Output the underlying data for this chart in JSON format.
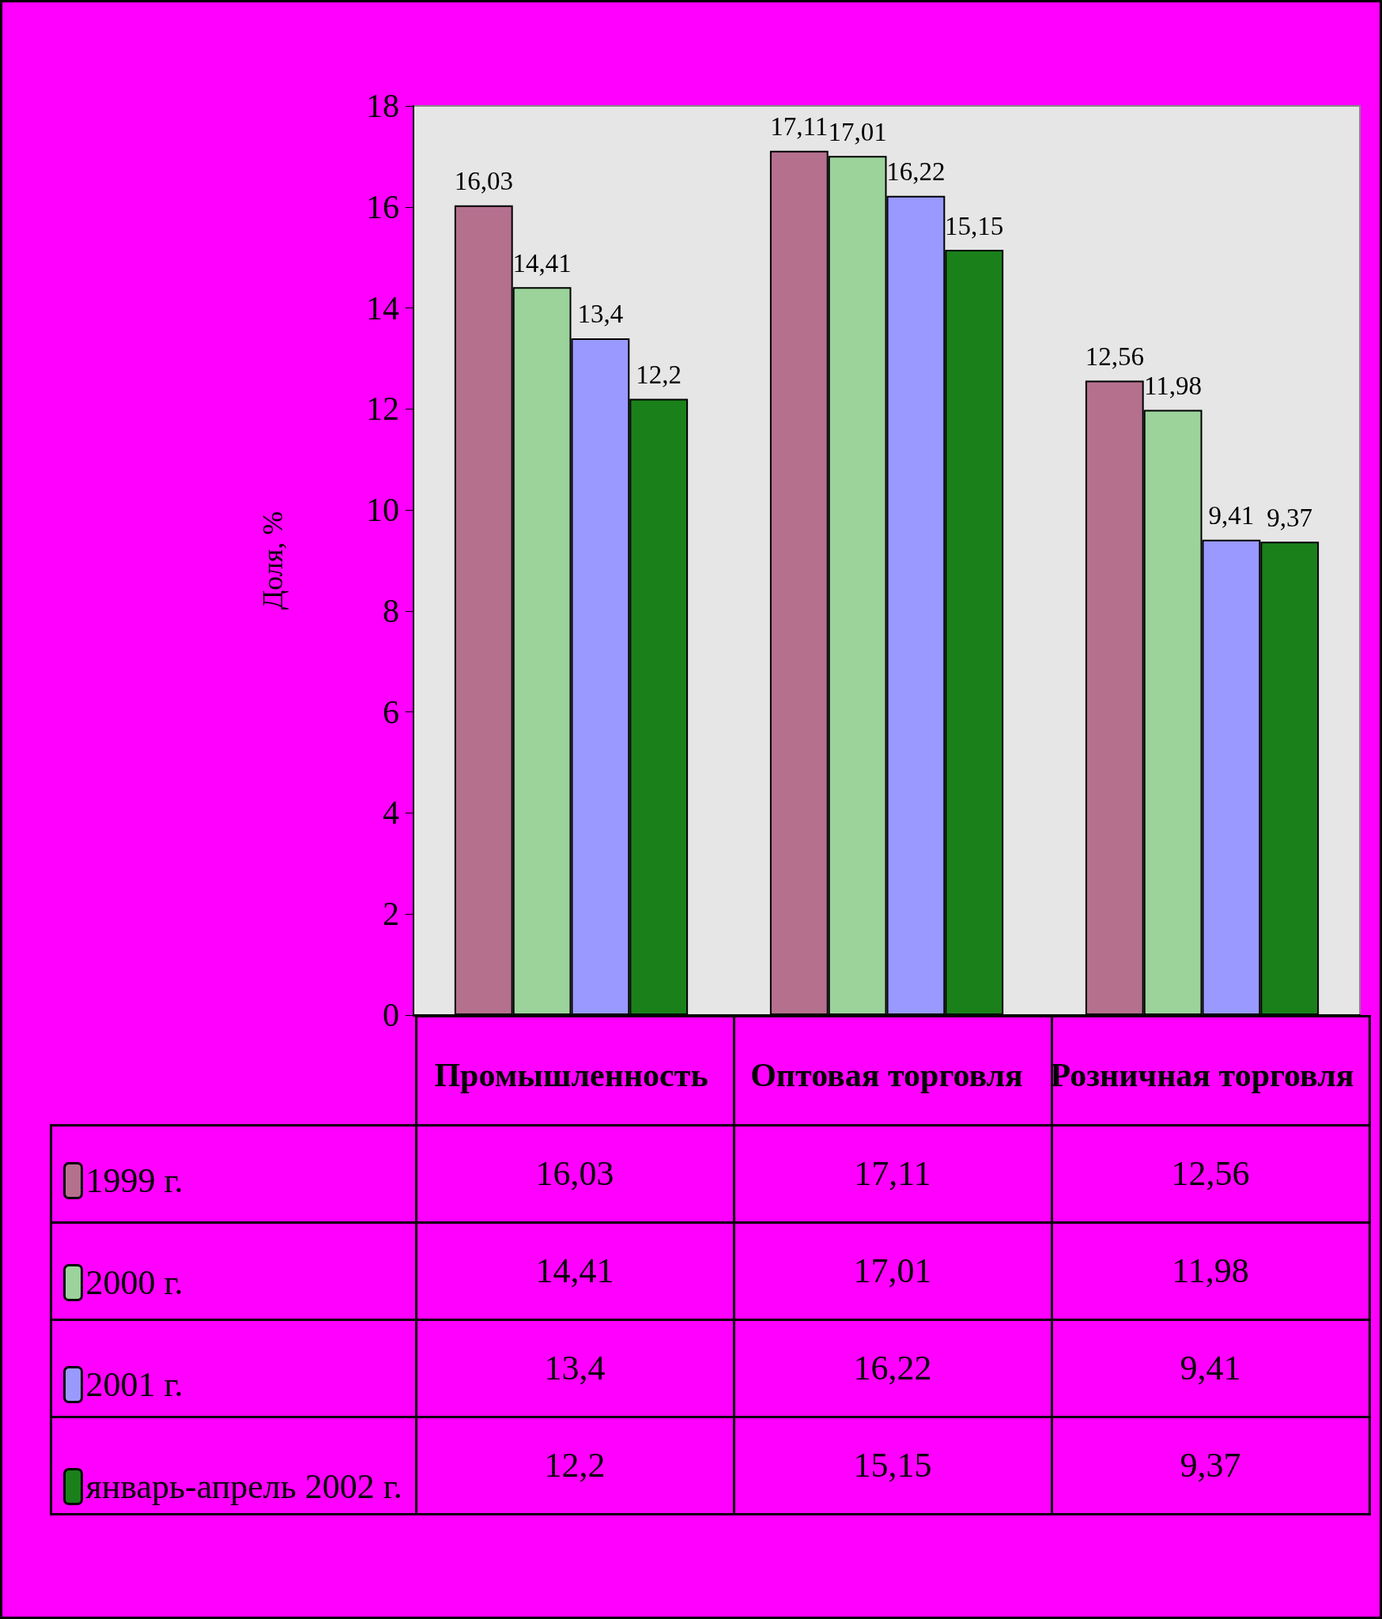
{
  "chart_data": {
    "type": "bar",
    "ylabel": "Доля, %",
    "categories": [
      "Промышленность",
      "Оптовая торговля",
      "Розничная торговля"
    ],
    "series": [
      {
        "name": "1999 г.",
        "color": "#b5708e",
        "values": [
          16.03,
          17.11,
          12.56
        ],
        "value_labels": [
          "16,03",
          "17,11",
          "12,56"
        ]
      },
      {
        "name": "2000 г.",
        "color": "#9bd39b",
        "values": [
          14.41,
          17.01,
          11.98
        ],
        "value_labels": [
          "14,41",
          "17,01",
          "11,98"
        ]
      },
      {
        "name": "2001 г.",
        "color": "#9999ff",
        "values": [
          13.4,
          16.22,
          9.41
        ],
        "value_labels": [
          "13,4",
          "16,22",
          "9,41"
        ]
      },
      {
        "name": "январь-апрель 2002 г.",
        "color": "#1a801a",
        "values": [
          12.2,
          15.15,
          9.37
        ],
        "value_labels": [
          "12,2",
          "15,15",
          "9,37"
        ]
      }
    ],
    "ylim": [
      0,
      18
    ],
    "yticks": [
      0,
      2,
      4,
      6,
      8,
      10,
      12,
      14,
      16,
      18
    ],
    "grid": false,
    "legend": "bottom left"
  }
}
